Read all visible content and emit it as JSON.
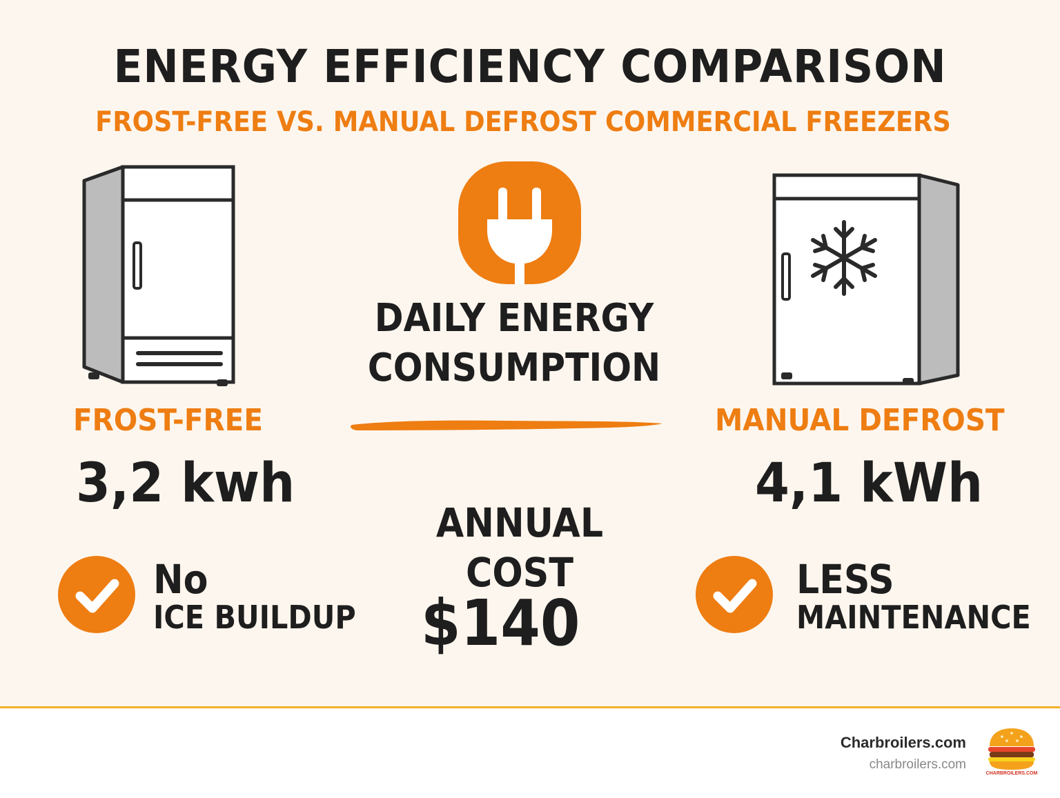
{
  "header": {
    "title": "ENERGY EFFICIENCY COMPARISON",
    "subtitle": "FROST-FREE VS. MANUAL DEFROST COMMERCIAL FREEZERS"
  },
  "left": {
    "icon": "upright-freezer-icon",
    "label": "FROST-FREE",
    "value": "3,2 kwh",
    "feature_line1": "No",
    "feature_line2": "ICE BUILDUP"
  },
  "center": {
    "icon": "power-plug-icon",
    "heading_line1": "DAILY ENERGY",
    "heading_line2": "CONSUMPTION",
    "cost_line1": "ANNUAL",
    "cost_line2": "COST",
    "cost_value": "$140"
  },
  "right": {
    "icon": "freezer-snowflake-icon",
    "label": "MANUAL DEFROST",
    "value": "4,1 kWh",
    "feature_line1": "LESS",
    "feature_line2": "MAINTENANCE"
  },
  "footer": {
    "brand_name": "Charbroilers.com",
    "brand_url": "charbroilers.com",
    "logo_text": "CHARBROILERS.COM"
  },
  "colors": {
    "accent": "#ee7d12",
    "text": "#1e1e1e",
    "background": "#fdf6ee",
    "footer_rule": "#f2b12a"
  }
}
